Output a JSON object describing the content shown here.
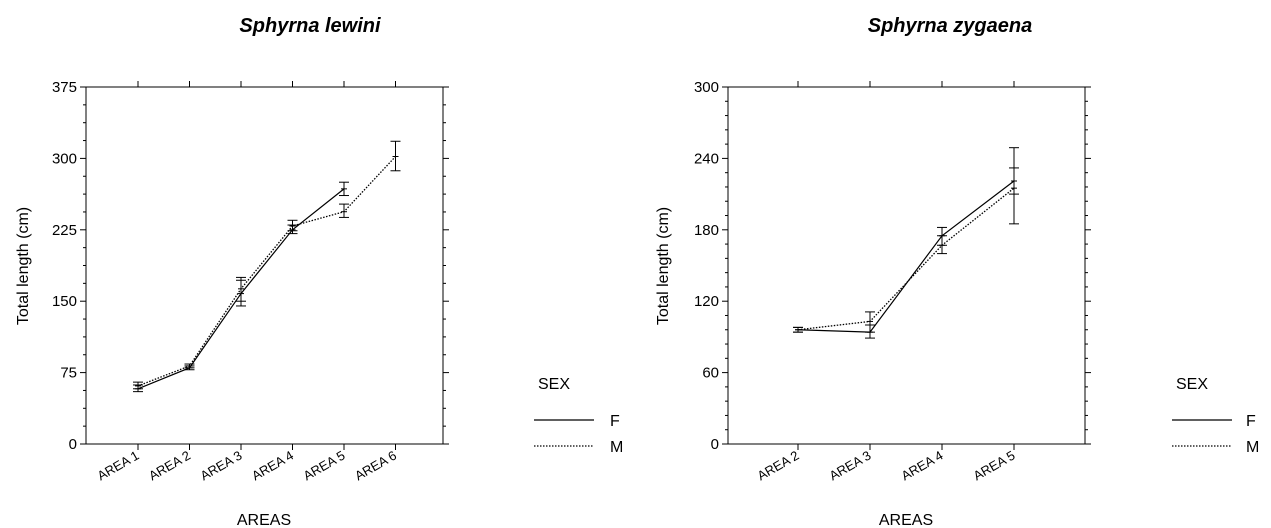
{
  "chart_data": [
    {
      "type": "line",
      "title": "Sphyrna lewini",
      "xlabel": "AREAS",
      "ylabel": "Total length (cm)",
      "categories": [
        "AREA 1",
        "AREA 2",
        "AREA 3",
        "AREA 4",
        "AREA 5",
        "AREA 6"
      ],
      "ylim": [
        0,
        375
      ],
      "yticks": [
        "0",
        "75",
        "150",
        "225",
        "300",
        "375"
      ],
      "series": [
        {
          "name": "F",
          "style": "solid",
          "values": [
            58,
            80,
            158,
            225,
            268,
            null
          ],
          "err_low": [
            55,
            78,
            145,
            221,
            261,
            null
          ],
          "err_high": [
            62,
            82,
            172,
            230,
            275,
            null
          ]
        },
        {
          "name": "M",
          "style": "dotted",
          "values": [
            61,
            82,
            163,
            229,
            244,
            302
          ],
          "err_low": [
            58,
            80,
            150,
            224,
            238,
            287
          ],
          "err_high": [
            65,
            84,
            175,
            235,
            252,
            318
          ]
        }
      ],
      "legend": {
        "title": "SEX",
        "placement": "right",
        "entries": [
          "F",
          "M"
        ]
      }
    },
    {
      "type": "line",
      "title": "Sphyrna zygaena",
      "xlabel": "AREAS",
      "ylabel": "Total length (cm)",
      "categories": [
        "AREA 2",
        "AREA 3",
        "AREA 4",
        "AREA 5"
      ],
      "ylim": [
        0,
        300
      ],
      "yticks": [
        "0",
        "60",
        "120",
        "180",
        "240",
        "300"
      ],
      "series": [
        {
          "name": "F",
          "style": "solid",
          "values": [
            96,
            94,
            175,
            221
          ],
          "err_low": [
            94,
            89,
            167,
            210
          ],
          "err_high": [
            98,
            100,
            182,
            232
          ]
        },
        {
          "name": "M",
          "style": "dotted",
          "values": [
            96,
            103,
            167,
            215
          ],
          "err_low": [
            94,
            94,
            160,
            185
          ],
          "err_high": [
            98,
            111,
            175,
            249
          ]
        }
      ],
      "legend": {
        "title": "SEX",
        "placement": "right",
        "entries": [
          "F",
          "M"
        ]
      }
    }
  ]
}
